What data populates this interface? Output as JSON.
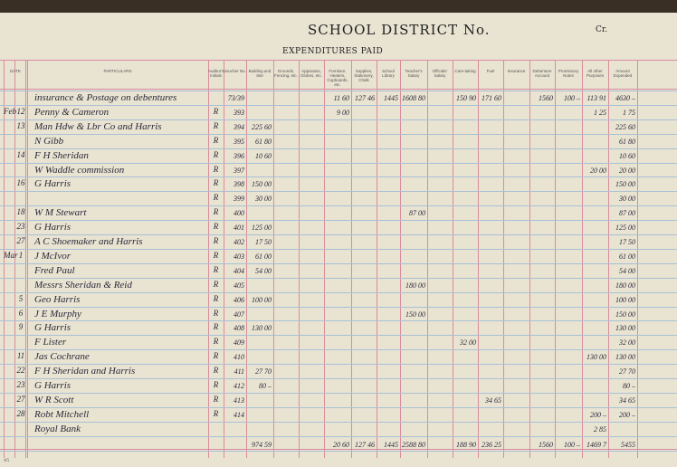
{
  "header": {
    "title": "SCHOOL DISTRICT No.",
    "side": "Cr.",
    "subtitle": "EXPENDITURES PAID"
  },
  "table": {
    "columns": [
      "DATE",
      "PARTICULARS",
      "Auditor's Initials",
      "Voucher No.",
      "Building and Site",
      "Grounds, Fencing, etc.",
      "Apparatus, Globes, etc.",
      "Furniture, Heaters, Cupboards, etc.",
      "Supplies, Stationery, Chalk",
      "School Library",
      "Teacher's Salary",
      "Officials' Salary",
      "Care-taking",
      "Fuel",
      "Insurance",
      "Debenture Account",
      "Promissory Notes",
      "All other Purposes",
      "Amount Expended"
    ],
    "rows": [
      [
        null,
        null,
        "insurance & Postage on debentures",
        null,
        "73/39",
        null,
        null,
        null,
        "11 60",
        "127 46",
        "1445",
        "1608 80",
        null,
        "150 90",
        "171 60",
        null,
        "1560",
        "100 –",
        "113 91",
        "4630 –"
      ],
      [
        "Feb",
        "12",
        "Penny & Cameron",
        "R",
        "393",
        null,
        null,
        null,
        "9 00",
        null,
        null,
        null,
        null,
        null,
        null,
        null,
        null,
        null,
        "1 25",
        "1 75"
      ],
      [
        null,
        "13",
        "Man Hdw & Lbr Co and Harris",
        "R",
        "394",
        "225 60",
        null,
        null,
        null,
        null,
        null,
        null,
        null,
        null,
        null,
        null,
        null,
        null,
        null,
        "225 60"
      ],
      [
        null,
        null,
        "N Gibb",
        "R",
        "395",
        "61 80",
        null,
        null,
        null,
        null,
        null,
        null,
        null,
        null,
        null,
        null,
        null,
        null,
        null,
        "61 80"
      ],
      [
        null,
        "14",
        "F H Sheridan",
        "R",
        "396",
        "10 60",
        null,
        null,
        null,
        null,
        null,
        null,
        null,
        null,
        null,
        null,
        null,
        null,
        null,
        "10 60"
      ],
      [
        null,
        null,
        "W Waddle commission",
        "R",
        "397",
        null,
        null,
        null,
        null,
        null,
        null,
        null,
        null,
        null,
        null,
        null,
        null,
        null,
        "20 00",
        "20 00"
      ],
      [
        null,
        "16",
        "G Harris",
        "R",
        "398",
        "150 00",
        null,
        null,
        null,
        null,
        null,
        null,
        null,
        null,
        null,
        null,
        null,
        null,
        null,
        "150 00"
      ],
      [
        null,
        null,
        null,
        "R",
        "399",
        "30 00",
        null,
        null,
        null,
        null,
        null,
        null,
        null,
        null,
        null,
        null,
        null,
        null,
        null,
        "30 00"
      ],
      [
        null,
        "18",
        "W M Stewart",
        "R",
        "400",
        null,
        null,
        null,
        null,
        null,
        null,
        "87 00",
        null,
        null,
        null,
        null,
        null,
        null,
        null,
        "87 00"
      ],
      [
        null,
        "23",
        "G Harris",
        "R",
        "401",
        "125 00",
        null,
        null,
        null,
        null,
        null,
        null,
        null,
        null,
        null,
        null,
        null,
        null,
        null,
        "125 00"
      ],
      [
        null,
        "27",
        "A C Shoemaker and Harris",
        "R",
        "402",
        "17 50",
        null,
        null,
        null,
        null,
        null,
        null,
        null,
        null,
        null,
        null,
        null,
        null,
        null,
        "17 50"
      ],
      [
        "Mar",
        "1",
        "J McIvor",
        "R",
        "403",
        "61 00",
        null,
        null,
        null,
        null,
        null,
        null,
        null,
        null,
        null,
        null,
        null,
        null,
        null,
        "61 00"
      ],
      [
        null,
        null,
        "Fred Paul",
        "R",
        "404",
        "54 00",
        null,
        null,
        null,
        null,
        null,
        null,
        null,
        null,
        null,
        null,
        null,
        null,
        null,
        "54 00"
      ],
      [
        null,
        null,
        "Messrs Sheridan & Reid",
        "R",
        "405",
        null,
        null,
        null,
        null,
        null,
        null,
        "180 00",
        null,
        null,
        null,
        null,
        null,
        null,
        null,
        "180 00"
      ],
      [
        null,
        "5",
        "Geo Harris",
        "R",
        "406",
        "100 00",
        null,
        null,
        null,
        null,
        null,
        null,
        null,
        null,
        null,
        null,
        null,
        null,
        null,
        "100 00"
      ],
      [
        null,
        "6",
        "J E Murphy",
        "R",
        "407",
        null,
        null,
        null,
        null,
        null,
        null,
        "150 00",
        null,
        null,
        null,
        null,
        null,
        null,
        null,
        "150 00"
      ],
      [
        null,
        "9",
        "G Harris",
        "R",
        "408",
        "130 00",
        null,
        null,
        null,
        null,
        null,
        null,
        null,
        null,
        null,
        null,
        null,
        null,
        null,
        "130 00"
      ],
      [
        null,
        null,
        "F Lister",
        "R",
        "409",
        null,
        null,
        null,
        null,
        null,
        null,
        null,
        null,
        "32 00",
        null,
        null,
        null,
        null,
        null,
        "32 00"
      ],
      [
        null,
        "11",
        "Jas Cochrane",
        "R",
        "410",
        null,
        null,
        null,
        null,
        null,
        null,
        null,
        null,
        null,
        null,
        null,
        null,
        null,
        "130 00",
        "130 00"
      ],
      [
        null,
        "22",
        "F H Sheridan and Harris",
        "R",
        "411",
        "27 70",
        null,
        null,
        null,
        null,
        null,
        null,
        null,
        null,
        null,
        null,
        null,
        null,
        null,
        "27 70"
      ],
      [
        null,
        "23",
        "G Harris",
        "R",
        "412",
        "80 –",
        null,
        null,
        null,
        null,
        null,
        null,
        null,
        null,
        null,
        null,
        null,
        null,
        null,
        "80 –"
      ],
      [
        null,
        "27",
        "W R Scott",
        "R",
        "413",
        null,
        null,
        null,
        null,
        null,
        null,
        null,
        null,
        null,
        "34 65",
        null,
        null,
        null,
        null,
        "34 65"
      ],
      [
        null,
        "28",
        "Robt Mitchell",
        "R",
        "414",
        null,
        null,
        null,
        null,
        null,
        null,
        null,
        null,
        null,
        null,
        null,
        null,
        null,
        "200 –",
        "200 –"
      ],
      [
        null,
        null,
        "Royal Bank",
        null,
        null,
        null,
        null,
        null,
        null,
        null,
        null,
        null,
        null,
        null,
        null,
        null,
        null,
        null,
        "2 85",
        null
      ]
    ],
    "totals": [
      null,
      null,
      null,
      null,
      null,
      "974 59",
      null,
      null,
      "20 60",
      "127 46",
      "1445",
      "2588 80",
      null,
      "188 90",
      "236 25",
      null,
      "1560",
      "100 –",
      "1469 7",
      "5455"
    ]
  },
  "footer": {
    "page": "45"
  }
}
